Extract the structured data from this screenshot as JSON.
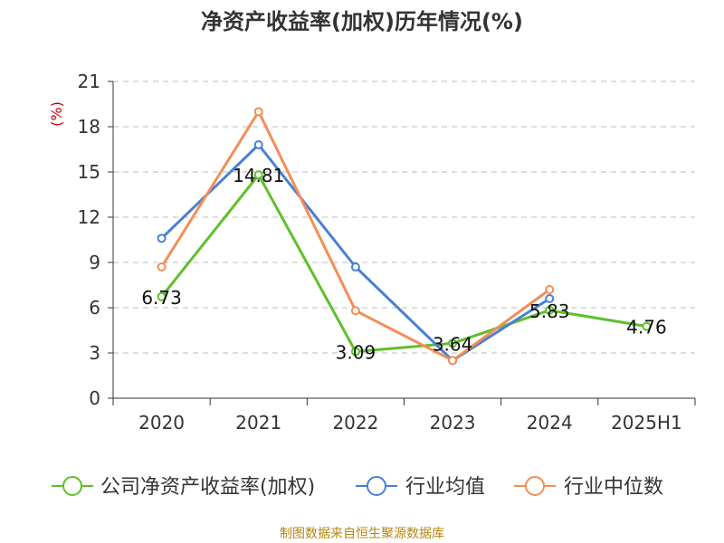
{
  "chart_data": {
    "type": "line",
    "title": "净资产收益率(加权)历年情况(%)",
    "ylabel": "(%)",
    "xlabel": "",
    "categories": [
      "2020",
      "2021",
      "2022",
      "2023",
      "2024",
      "2025H1"
    ],
    "ylim": [
      0,
      21
    ],
    "yticks": [
      0,
      3,
      6,
      9,
      12,
      15,
      18,
      21
    ],
    "grid": "horizontal dashed",
    "legend_position": "bottom",
    "series": [
      {
        "name": "公司净资产收益率(加权)",
        "color": "#5ec02a",
        "values": [
          6.73,
          14.81,
          3.09,
          3.64,
          5.83,
          4.76
        ],
        "labels": [
          "6.73",
          "14.81",
          "3.09",
          "3.64",
          "5.83",
          "4.76"
        ]
      },
      {
        "name": "行业均值",
        "color": "#4a7fd6",
        "values": [
          10.6,
          16.8,
          8.7,
          2.5,
          6.6,
          null
        ]
      },
      {
        "name": "行业中位数",
        "color": "#f28e57",
        "values": [
          8.7,
          19.0,
          5.8,
          2.5,
          7.2,
          null
        ]
      }
    ]
  },
  "source": "制图数据来自恒生聚源数据库"
}
